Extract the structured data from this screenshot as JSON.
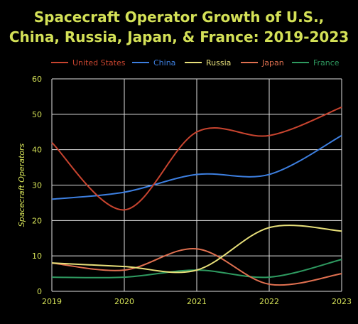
{
  "chart_data": {
    "type": "line",
    "title_line1": "Spacecraft Operator Growth of U.S.,",
    "title_line2": "China, Russia, Japan, & France: 2019-2023",
    "xlabel": "",
    "ylabel": "Spacecraft Operators",
    "x": [
      "2019",
      "2020",
      "2021",
      "2022",
      "2023"
    ],
    "ylim": [
      0,
      60
    ],
    "yticks": [
      "0",
      "10",
      "20",
      "30",
      "40",
      "50",
      "60"
    ],
    "grid": true,
    "legend_position": "top",
    "series": [
      {
        "name": "United States",
        "color": "#c8442f",
        "values": [
          42,
          23,
          45,
          44,
          52
        ]
      },
      {
        "name": "China",
        "color": "#3d7fe0",
        "values": [
          26,
          28,
          33,
          33,
          44
        ]
      },
      {
        "name": "Russia",
        "color": "#e8e07a",
        "values": [
          8,
          7,
          6,
          18,
          17
        ]
      },
      {
        "name": "Japan",
        "color": "#e07050",
        "values": [
          8,
          6,
          12,
          2,
          5
        ]
      },
      {
        "name": "France",
        "color": "#2e9a60",
        "values": [
          4,
          4,
          6,
          4,
          9
        ]
      }
    ]
  }
}
